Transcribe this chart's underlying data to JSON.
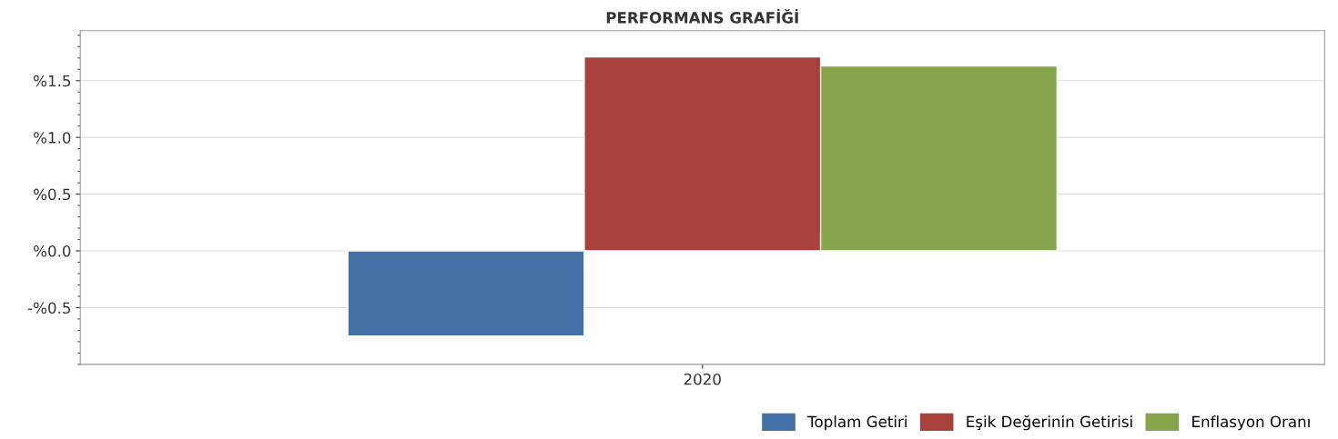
{
  "chart_data": {
    "type": "bar",
    "title": "PERFORMANS GRAFİĞİ",
    "categories": [
      "2020"
    ],
    "series": [
      {
        "name": "Toplam Getiri",
        "color": "#4470a8",
        "values": [
          -0.75
        ]
      },
      {
        "name": "Eşik Değerinin Getirisi",
        "color": "#a8403e",
        "values": [
          1.71
        ]
      },
      {
        "name": "Enflasyon Oranı",
        "color": "#86a44c",
        "values": [
          1.63
        ]
      }
    ],
    "ylim": [
      -1.0,
      1.94
    ],
    "yticks": [
      {
        "value": -0.5,
        "label": "-%0.5"
      },
      {
        "value": 0.0,
        "label": "%0.0"
      },
      {
        "value": 0.5,
        "label": "%0.5"
      },
      {
        "value": 1.0,
        "label": "%1.0"
      },
      {
        "value": 1.5,
        "label": "%1.5"
      }
    ],
    "grid": "y",
    "legend": "bottom right"
  }
}
